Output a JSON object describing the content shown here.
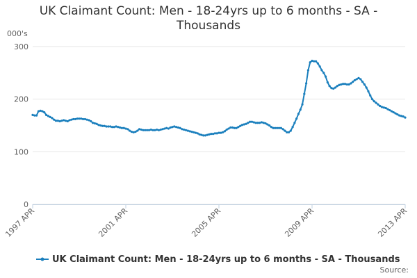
{
  "chart_data": {
    "type": "line",
    "title": "UK Claimant Count: Men - 18-24yrs up to 6 months - SA - Thousands",
    "y_axis_label": "000's",
    "source": "Source:",
    "categories": [
      "1997 APR",
      null,
      null,
      null,
      null,
      null,
      null,
      null,
      null,
      null,
      null,
      null,
      null,
      null,
      null,
      null,
      null,
      null,
      null,
      null,
      null,
      null,
      null,
      null,
      null,
      null,
      null,
      null,
      null,
      null,
      null,
      null,
      null,
      null,
      null,
      null,
      null,
      null,
      null,
      null,
      null,
      null,
      null,
      null,
      null,
      null,
      null,
      null,
      "2001 APR",
      null,
      null,
      null,
      null,
      null,
      null,
      null,
      null,
      null,
      null,
      null,
      null,
      null,
      null,
      null,
      null,
      null,
      null,
      null,
      null,
      null,
      null,
      null,
      null,
      null,
      null,
      null,
      null,
      null,
      null,
      null,
      null,
      null,
      null,
      null,
      null,
      null,
      null,
      null,
      null,
      null,
      null,
      null,
      null,
      null,
      null,
      null,
      "2005 APR",
      null,
      null,
      null,
      null,
      null,
      null,
      null,
      null,
      null,
      null,
      null,
      null,
      null,
      null,
      null,
      null,
      null,
      null,
      null,
      null,
      null,
      null,
      null,
      null,
      null,
      null,
      null,
      null,
      null,
      null,
      null,
      null,
      null,
      null,
      null,
      null,
      null,
      null,
      null,
      null,
      null,
      null,
      null,
      null,
      null,
      null,
      null,
      "2009 APR",
      null,
      null,
      null,
      null,
      null,
      null,
      null,
      null,
      null,
      null,
      null,
      null,
      null,
      null,
      null,
      null,
      null,
      null,
      null,
      null,
      null,
      null,
      null,
      null,
      null,
      null,
      null,
      null,
      null,
      null,
      null,
      null,
      null,
      null,
      null,
      null,
      null,
      null,
      null,
      null,
      null,
      null,
      null,
      null,
      null,
      null,
      null,
      "2013 APR"
    ],
    "series": [
      {
        "name": "UK Claimant Count: Men - 18-24yrs up to 6 months - SA - Thousands",
        "color": "#1a7fbd",
        "values": [
          170,
          169,
          169,
          177,
          178,
          177,
          175,
          170,
          168,
          166,
          164,
          161,
          159,
          159,
          158,
          159,
          160,
          159,
          158,
          160,
          161,
          162,
          162,
          163,
          163,
          163,
          162,
          162,
          161,
          160,
          158,
          155,
          154,
          153,
          151,
          150,
          149,
          149,
          148,
          148,
          148,
          147,
          147,
          148,
          147,
          146,
          145,
          145,
          144,
          143,
          140,
          138,
          137,
          138,
          140,
          143,
          142,
          141,
          141,
          141,
          141,
          142,
          141,
          141,
          142,
          141,
          142,
          143,
          144,
          145,
          144,
          146,
          147,
          148,
          147,
          146,
          145,
          143,
          142,
          141,
          140,
          139,
          138,
          137,
          136,
          135,
          133,
          132,
          131,
          131,
          132,
          133,
          134,
          134,
          135,
          135,
          136,
          136,
          137,
          139,
          142,
          144,
          146,
          146,
          145,
          145,
          147,
          149,
          151,
          152,
          153,
          155,
          157,
          157,
          156,
          155,
          155,
          155,
          156,
          155,
          154,
          152,
          150,
          147,
          145,
          145,
          145,
          145,
          145,
          143,
          140,
          137,
          137,
          140,
          147,
          155,
          163,
          172,
          180,
          190,
          210,
          230,
          255,
          270,
          273,
          272,
          272,
          268,
          262,
          255,
          250,
          243,
          232,
          225,
          221,
          220,
          222,
          225,
          227,
          228,
          229,
          229,
          228,
          228,
          230,
          233,
          236,
          238,
          240,
          238,
          233,
          228,
          222,
          215,
          207,
          200,
          196,
          193,
          190,
          187,
          185,
          184,
          183,
          181,
          179,
          177,
          175,
          173,
          171,
          169,
          168,
          167,
          165
        ]
      }
    ],
    "ylim": [
      0,
      300
    ],
    "yticks": [
      0,
      100,
      200,
      300
    ],
    "grid": true,
    "legend": "bottom"
  }
}
